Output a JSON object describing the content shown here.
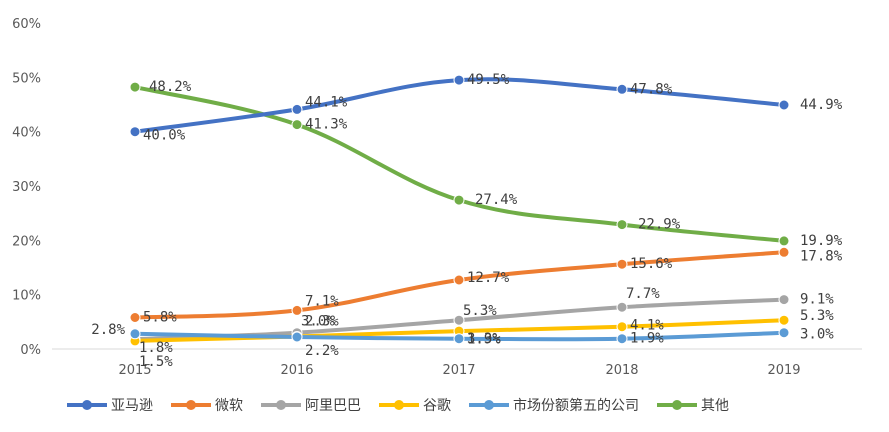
{
  "chart_data": {
    "type": "line",
    "title": "",
    "xlabel": "",
    "ylabel": "",
    "categories": [
      "2015",
      "2016",
      "2017",
      "2018",
      "2019"
    ],
    "yticks": [
      "0%",
      "10%",
      "20%",
      "30%",
      "40%",
      "50%",
      "60%"
    ],
    "ylim": [
      0,
      60
    ],
    "grid": false,
    "legend_position": "bottom",
    "series": [
      {
        "name": "亚马逊",
        "color": "#4472C4",
        "values": [
          40.0,
          44.1,
          49.5,
          47.8,
          44.9
        ],
        "labels": [
          "40.0%",
          "44.1%",
          "49.5%",
          "47.8%",
          "44.9%"
        ]
      },
      {
        "name": "微软",
        "color": "#ED7D31",
        "values": [
          5.8,
          7.1,
          12.7,
          15.6,
          17.8
        ],
        "labels": [
          "5.8%",
          "7.1%",
          "12.7%",
          "15.6%",
          "17.8%"
        ]
      },
      {
        "name": "阿里巴巴",
        "color": "#A5A5A5",
        "values": [
          1.8,
          3.0,
          5.3,
          7.7,
          9.1
        ],
        "labels": [
          "1.8%",
          "3.0%",
          "5.3%",
          "7.7%",
          "9.1%"
        ]
      },
      {
        "name": "谷歌",
        "color": "#FFC000",
        "values": [
          1.5,
          2.3,
          3.3,
          4.1,
          5.3
        ],
        "labels": [
          "1.5%",
          "2.3%",
          "3.3%",
          "4.1%",
          "5.3%"
        ]
      },
      {
        "name": "市场份额第五的公司",
        "color": "#5B9BD5",
        "values": [
          2.8,
          2.2,
          1.9,
          1.9,
          3.0
        ],
        "labels": [
          "2.8%",
          "2.2%",
          "1.9%",
          "1.9%",
          "3.0%"
        ]
      },
      {
        "name": "其他",
        "color": "#70AD47",
        "values": [
          48.2,
          41.3,
          27.4,
          22.9,
          19.9
        ],
        "labels": [
          "48.2%",
          "41.3%",
          "27.4%",
          "22.9%",
          "19.9%"
        ]
      }
    ]
  }
}
